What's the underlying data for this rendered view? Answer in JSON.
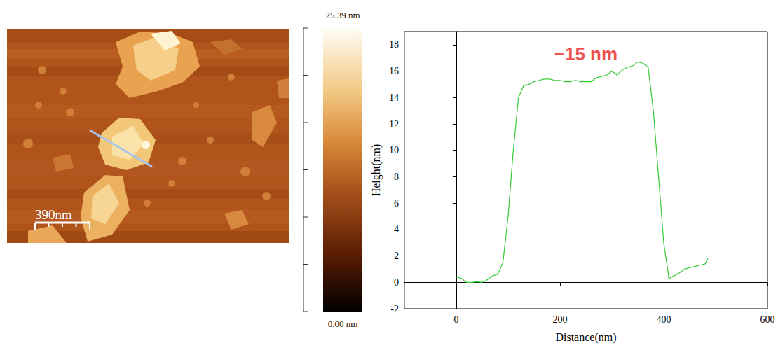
{
  "afm_image": {
    "scale_bar": {
      "value": 390,
      "label": "390nm"
    },
    "colorbar_range": [
      0,
      25.39
    ],
    "colorbar_ticks": [
      {
        "value": 0,
        "label": "0.00 nm"
      },
      {
        "value": 25.39,
        "label": "25.39 nm"
      }
    ]
  },
  "chart_data": {
    "type": "line",
    "x_label": "Distance(nm)",
    "y_label": "Height(nm)",
    "x": [
      0,
      10,
      20,
      30,
      40,
      50,
      60,
      70,
      80,
      90,
      100,
      110,
      120,
      130,
      140,
      150,
      160,
      170,
      180,
      190,
      200,
      210,
      220,
      230,
      240,
      250,
      260,
      270,
      280,
      290,
      300,
      310,
      320,
      330,
      340,
      350,
      360,
      370,
      380,
      390,
      400,
      410,
      420,
      430,
      440,
      450,
      460,
      470,
      480,
      485
    ],
    "values": [
      0.4,
      0.3,
      0.0,
      0.0,
      0.05,
      0.0,
      0.2,
      0.5,
      0.6,
      1.5,
      5,
      10,
      14,
      14.9,
      15.0,
      15.2,
      15.3,
      15.4,
      15.4,
      15.3,
      15.3,
      15.2,
      15.2,
      15.3,
      15.2,
      15.2,
      15.2,
      15.5,
      15.6,
      15.7,
      16.0,
      15.7,
      16.1,
      16.3,
      16.4,
      16.7,
      16.6,
      16.3,
      13,
      8,
      3,
      0.3,
      0.5,
      0.7,
      1.0,
      1.1,
      1.2,
      1.3,
      1.4,
      1.8
    ],
    "color": "#33cc33",
    "xlim": [
      -100,
      600
    ],
    "xticks": [
      0,
      200,
      400,
      600
    ],
    "ylim": [
      -2,
      19
    ],
    "yticks": [
      -2,
      0,
      2,
      4,
      6,
      8,
      10,
      12,
      14,
      16,
      18
    ],
    "grid": false,
    "annotations": [
      {
        "text": "~15 nm",
        "x": 250,
        "y": 17.3,
        "color": "#e8201c"
      }
    ]
  }
}
